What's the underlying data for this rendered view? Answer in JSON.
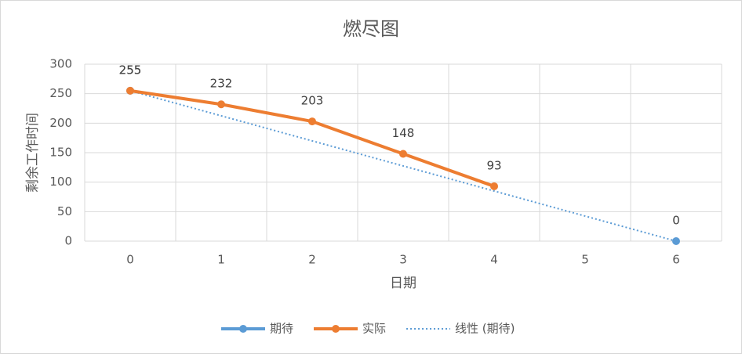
{
  "chart_data": {
    "type": "line",
    "title": "燃尽图",
    "x_label": "日期",
    "y_label": "剩余工作时间",
    "categories": [
      "0",
      "1",
      "2",
      "3",
      "4",
      "5",
      "6"
    ],
    "series": [
      {
        "name": "期待",
        "color": "#5b9bd5",
        "values": [
          255,
          null,
          null,
          null,
          null,
          null,
          0
        ]
      },
      {
        "name": "实际",
        "color": "#ed7d31",
        "values": [
          255,
          232,
          203,
          148,
          93,
          null,
          null
        ]
      }
    ],
    "trendline": {
      "name": "线性 (期待)",
      "color": "#5b9bd5",
      "series": 0,
      "style": "dotted"
    },
    "ylim": [
      0,
      300
    ],
    "yticks": [
      0,
      50,
      100,
      150,
      200,
      250,
      300
    ],
    "grid": true,
    "data_labels": true,
    "legend": "bottom"
  }
}
